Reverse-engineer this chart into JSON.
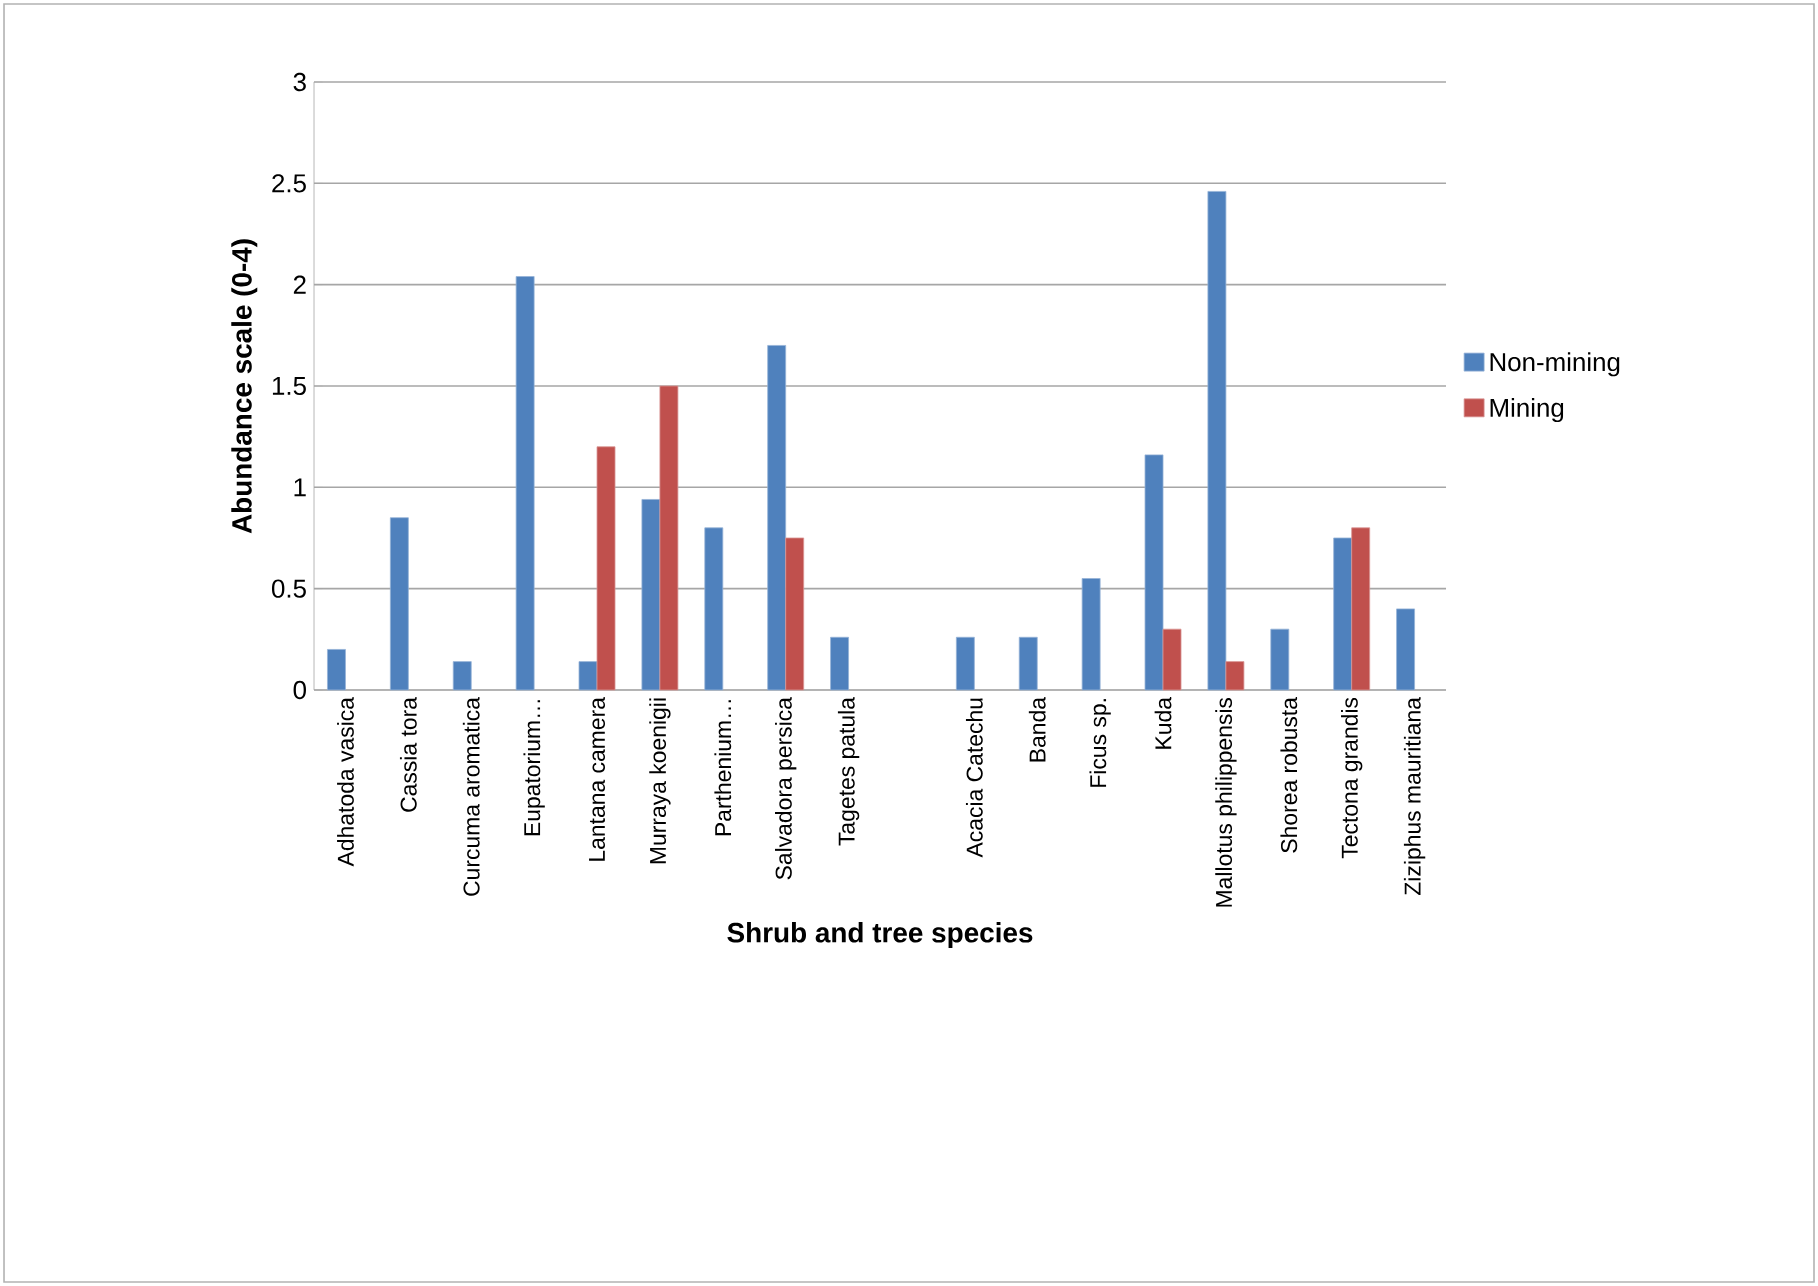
{
  "chart_data": {
    "type": "bar",
    "xlabel": "Shrub and tree species",
    "ylabel": "Abundance scale (0-4)",
    "categories": [
      "Adhatoda vasica",
      "Cassia tora",
      "Curcuma aromatica",
      "Eupatorium…",
      "Lantana camera",
      "Murraya koenigii",
      "Parthenium…",
      "Salvadora persica",
      "Tagetes patula",
      null,
      "Acacia Catechu",
      "Banda",
      "Ficus sp.",
      "Kuda",
      "Mallotus philippensis",
      "Shorea robusta",
      "Tectona grandis",
      "Ziziphus mauritiana"
    ],
    "series": [
      {
        "name": "Non-mining",
        "color": "#4f81bd",
        "values": [
          0.2,
          0.85,
          0.14,
          2.04,
          0.14,
          0.94,
          0.8,
          1.7,
          0.26,
          null,
          0.26,
          0.26,
          0.55,
          1.16,
          2.46,
          0.3,
          0.75,
          0.4
        ]
      },
      {
        "name": "Mining",
        "color": "#c0504d",
        "values": [
          null,
          null,
          null,
          null,
          1.2,
          1.5,
          null,
          0.75,
          null,
          null,
          null,
          null,
          null,
          0.3,
          0.14,
          null,
          0.8,
          null
        ]
      }
    ],
    "ylim": [
      0,
      3
    ],
    "yticks": [
      0,
      0.5,
      1,
      1.5,
      2,
      2.5,
      3
    ],
    "grid": "y",
    "legend": "right"
  }
}
